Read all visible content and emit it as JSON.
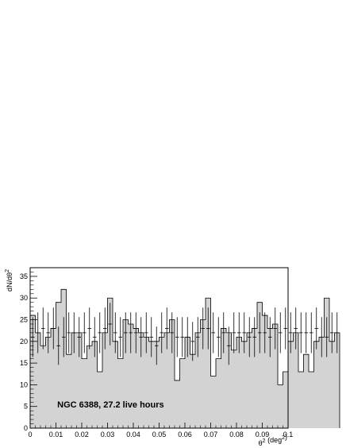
{
  "chart_data": {
    "type": "histogram",
    "xlabel": "θ² (deg²)",
    "ylabel": "dN/dθ²",
    "annotation": "NGC 6388, 27.2 live hours",
    "xlim": [
      0,
      0.1
    ],
    "ylim": [
      0,
      37
    ],
    "x_ticks": [
      "0",
      "0.01",
      "0.02",
      "0.03",
      "0.04",
      "0.05",
      "0.06",
      "0.07",
      "0.08",
      "0.09",
      "0.1"
    ],
    "y_ticks": [
      "0",
      "5",
      "10",
      "15",
      "20",
      "25",
      "30",
      "35"
    ],
    "bin_width": 0.002,
    "series": [
      {
        "style": "filled-histogram",
        "color": "#d3d3d3",
        "values": [
          26,
          22,
          19,
          21,
          23,
          29,
          32,
          17,
          22,
          22,
          16,
          19,
          20,
          13,
          22,
          30,
          20,
          16,
          25,
          24,
          23,
          22,
          21,
          20,
          20,
          21,
          22,
          25,
          11,
          16,
          21,
          17,
          22,
          25,
          30,
          12,
          16,
          23,
          22,
          18,
          21,
          20,
          22,
          23,
          29,
          26,
          23,
          24,
          10,
          13,
          20,
          22,
          13,
          17,
          13,
          20,
          21,
          30,
          20,
          22
        ]
      },
      {
        "style": "points-with-errors",
        "color": "#000000",
        "values": [
          21,
          22,
          23,
          22,
          23,
          19,
          21,
          22,
          22,
          21,
          22,
          23,
          21,
          22,
          23,
          24,
          22,
          21,
          22,
          22,
          22,
          21,
          22,
          21,
          19,
          22,
          23,
          22,
          21,
          21,
          21,
          20,
          21,
          23,
          23,
          22,
          21,
          22,
          19,
          22,
          22,
          22,
          21,
          21,
          22,
          22,
          21,
          23,
          22,
          23,
          22,
          23,
          22,
          22,
          22,
          23,
          21,
          21,
          22,
          22
        ],
        "errors": [
          4.6,
          4.7,
          4.8,
          4.7,
          4.8,
          4.4,
          4.6,
          4.7,
          4.7,
          4.6,
          4.7,
          4.8,
          4.6,
          4.7,
          4.8,
          4.9,
          4.7,
          4.6,
          4.7,
          4.7,
          4.7,
          4.6,
          4.7,
          4.6,
          4.4,
          4.7,
          4.8,
          4.7,
          4.6,
          4.6,
          4.6,
          4.5,
          4.6,
          4.8,
          4.8,
          4.7,
          4.6,
          4.7,
          4.4,
          4.7,
          4.7,
          4.7,
          4.6,
          4.6,
          4.7,
          4.7,
          4.6,
          4.8,
          4.7,
          4.8,
          4.7,
          4.8,
          4.7,
          4.7,
          4.7,
          4.8,
          4.6,
          4.6,
          4.7,
          4.7
        ]
      }
    ]
  }
}
